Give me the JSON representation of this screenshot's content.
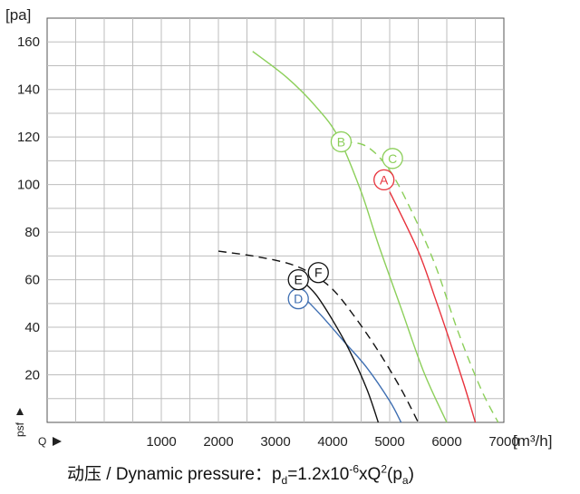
{
  "chart_data": {
    "type": "line",
    "y_unit": "[pa]",
    "x_unit": "[m³/h]",
    "y_axis_label": "psf",
    "x_axis_label": "Q",
    "xlim": [
      -1000,
      7000
    ],
    "ylim": [
      0,
      170
    ],
    "x_ticks": [
      "1000",
      "2000",
      "3000",
      "4000",
      "5000",
      "6000",
      "7000"
    ],
    "y_ticks": [
      "20",
      "40",
      "60",
      "80",
      "100",
      "120",
      "140",
      "160"
    ],
    "grid": true,
    "series": [
      {
        "name": "A",
        "color": "#e8323c",
        "dash": false,
        "points": [
          [
            5000,
            97
          ],
          [
            5500,
            72
          ],
          [
            5800,
            52
          ],
          [
            6000,
            38
          ],
          [
            6300,
            16
          ],
          [
            6500,
            0
          ]
        ],
        "label_at": [
          4900,
          102
        ]
      },
      {
        "name": "B",
        "color": "#8ccf5a",
        "dash": false,
        "points": [
          [
            2600,
            156
          ],
          [
            3200,
            145
          ],
          [
            3700,
            133
          ],
          [
            4100,
            120
          ],
          [
            4500,
            97
          ],
          [
            4800,
            75
          ],
          [
            5200,
            48
          ],
          [
            5600,
            21
          ],
          [
            6000,
            0
          ]
        ],
        "label_at": [
          4150,
          118
        ]
      },
      {
        "name": "C",
        "color": "#8ccf5a",
        "dash": true,
        "points": [
          [
            4200,
            118
          ],
          [
            4600,
            116
          ],
          [
            5000,
            106
          ],
          [
            5400,
            88
          ],
          [
            5800,
            66
          ],
          [
            6200,
            38
          ],
          [
            6600,
            14
          ],
          [
            6900,
            0
          ]
        ],
        "label_at": [
          5050,
          111
        ]
      },
      {
        "name": "D",
        "color": "#3f6fb2",
        "dash": false,
        "points": [
          [
            3400,
            55
          ],
          [
            3800,
            45
          ],
          [
            4200,
            34
          ],
          [
            4600,
            23
          ],
          [
            5000,
            9
          ],
          [
            5200,
            0
          ]
        ],
        "label_at": [
          3400,
          52
        ]
      },
      {
        "name": "E",
        "color": "#111111",
        "dash": false,
        "points": [
          [
            3400,
            61
          ],
          [
            3700,
            54
          ],
          [
            4000,
            43
          ],
          [
            4300,
            30
          ],
          [
            4600,
            14
          ],
          [
            4800,
            0
          ]
        ],
        "label_at": [
          3400,
          60
        ]
      },
      {
        "name": "F",
        "color": "#111111",
        "dash": true,
        "points": [
          [
            2000,
            72
          ],
          [
            2600,
            70
          ],
          [
            3200,
            67
          ],
          [
            3600,
            63
          ],
          [
            4000,
            56
          ],
          [
            4400,
            44
          ],
          [
            4800,
            30
          ],
          [
            5200,
            14
          ],
          [
            5500,
            0
          ]
        ],
        "label_at": [
          3750,
          63
        ]
      }
    ]
  },
  "caption": {
    "prefix": "动压 / Dynamic pressure：p",
    "sub_d": "d",
    "middle": "=1.2x10",
    "sup_exp": "-6",
    "after_exp": "xQ",
    "sup_2": "2",
    "paren_open": "(p",
    "sub_a": "a",
    "paren_close": ")"
  }
}
